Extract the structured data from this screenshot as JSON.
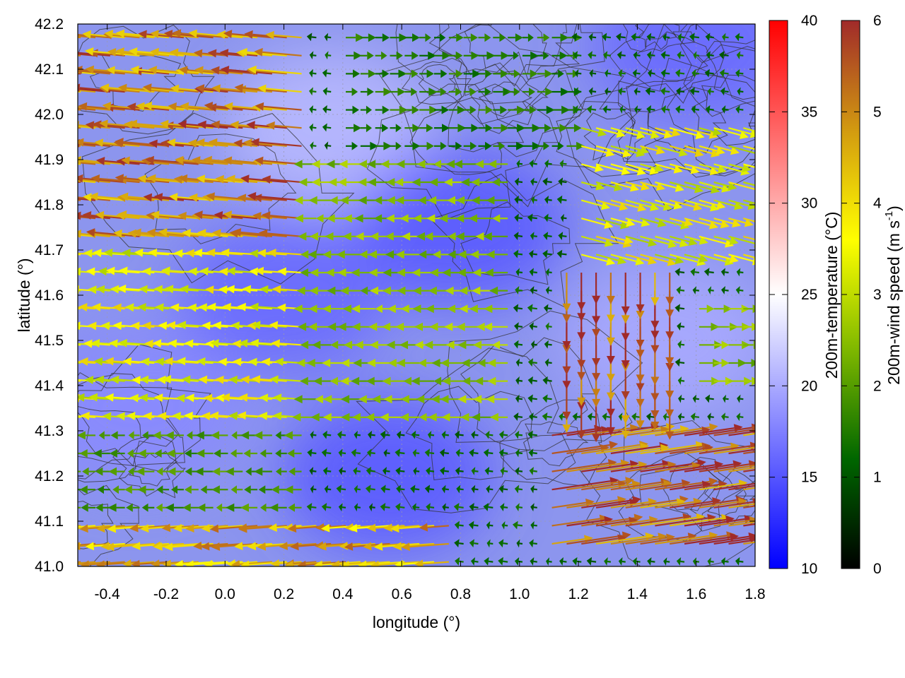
{
  "chart_data": {
    "type": "heatmap",
    "subtype": "vector-field-with-contours",
    "title": "",
    "xlabel": "longitude (°)",
    "ylabel": "latitude (°)",
    "xlim": [
      -0.5,
      1.8
    ],
    "ylim": [
      41.0,
      42.2
    ],
    "xticks": [
      "-0.4",
      "-0.2",
      "0.0",
      "0.2",
      "0.4",
      "0.6",
      "0.8",
      "1.0",
      "1.2",
      "1.4",
      "1.6",
      "1.8"
    ],
    "yticks": [
      "41.0",
      "41.1",
      "41.2",
      "41.3",
      "41.4",
      "41.5",
      "41.6",
      "41.7",
      "41.8",
      "41.9",
      "42.0",
      "42.1",
      "42.2"
    ],
    "grid": true,
    "colorbars": [
      {
        "name": "temperature",
        "label": "200m-temperature (°C)",
        "range": [
          10,
          40
        ],
        "ticks": [
          "10",
          "15",
          "20",
          "25",
          "30",
          "35",
          "40"
        ],
        "colors": [
          "#0000ff",
          "#ffffff",
          "#ff0000"
        ]
      },
      {
        "name": "wind",
        "label_main": "200m-wind speed (m s",
        "label_sup": "-1",
        "label_end": ")",
        "range": [
          0,
          6
        ],
        "ticks": [
          "0",
          "1",
          "2",
          "3",
          "4",
          "5",
          "6"
        ],
        "colors": [
          "#000000",
          "#006600",
          "#7fb800",
          "#ffff00",
          "#d29a10",
          "#a02a2a"
        ]
      }
    ],
    "temperature_regions": [
      {
        "lon": 0.35,
        "lat": 41.97,
        "temp": 21
      },
      {
        "lon": 0.8,
        "lat": 41.75,
        "temp": 15
      },
      {
        "lon": 0.2,
        "lat": 41.6,
        "temp": 16
      },
      {
        "lon": 0.55,
        "lat": 41.2,
        "temp": 15
      },
      {
        "lon": 1.5,
        "lat": 41.5,
        "temp": 20
      },
      {
        "lon": 1.6,
        "lat": 42.15,
        "temp": 16
      },
      {
        "lon": -0.3,
        "lat": 41.35,
        "temp": 18
      }
    ],
    "wind_regions": [
      {
        "name": "northwest",
        "lon_range": [
          -0.5,
          0.3
        ],
        "lat_range": [
          41.7,
          42.2
        ],
        "u": -4.5,
        "v": 0.4,
        "speed": 5
      },
      {
        "name": "west-middle",
        "lon_range": [
          -0.5,
          0.3
        ],
        "lat_range": [
          41.3,
          41.7
        ],
        "u": -3.0,
        "v": 0.2,
        "speed": 3.5
      },
      {
        "name": "west-south",
        "lon_range": [
          -0.5,
          0.3
        ],
        "lat_range": [
          41.0,
          41.3
        ],
        "u": -1.5,
        "v": 0.0,
        "speed": 1.8
      },
      {
        "name": "south-strip",
        "lon_range": [
          -0.5,
          0.8
        ],
        "lat_range": [
          41.0,
          41.12
        ],
        "u": -4.0,
        "v": -0.3,
        "speed": 4.5
      },
      {
        "name": "center",
        "lon_range": [
          0.3,
          1.0
        ],
        "lat_range": [
          41.3,
          41.9
        ],
        "u": -2.0,
        "v": 0.0,
        "speed": 2.5
      },
      {
        "name": "north-center",
        "lon_range": [
          0.4,
          1.2
        ],
        "lat_range": [
          41.9,
          42.2
        ],
        "u": 1.5,
        "v": 0.0,
        "speed": 1.5
      },
      {
        "name": "east-convergence",
        "lon_range": [
          1.15,
          1.55
        ],
        "lat_range": [
          41.35,
          41.65
        ],
        "u": 0.0,
        "v": -3.5,
        "speed": 5.5
      },
      {
        "name": "east-north",
        "lon_range": [
          1.2,
          1.8
        ],
        "lat_range": [
          41.65,
          42.0
        ],
        "u": 3.0,
        "v": -0.8,
        "speed": 3.5
      },
      {
        "name": "southeast",
        "lon_range": [
          1.1,
          1.8
        ],
        "lat_range": [
          41.05,
          41.3
        ],
        "u": 5.5,
        "v": 0.8,
        "speed": 5.5
      },
      {
        "name": "east-edge",
        "lon_range": [
          1.6,
          1.8
        ],
        "lat_range": [
          41.4,
          41.6
        ],
        "u": 2.0,
        "v": 0.0,
        "speed": 2.5
      }
    ]
  }
}
